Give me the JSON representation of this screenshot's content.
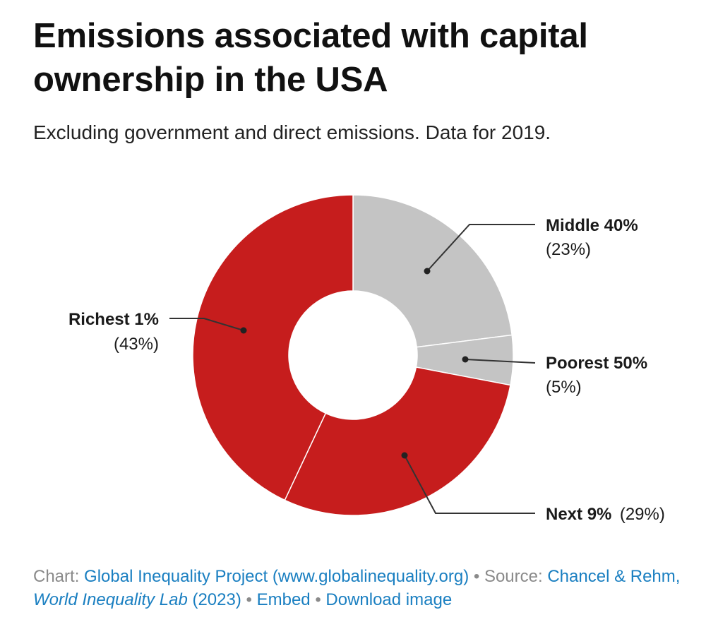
{
  "header": {
    "title": "Emissions associated with capital ownership in the USA",
    "subtitle": "Excluding government and direct emissions. Data for 2019."
  },
  "chart_data": {
    "type": "pie",
    "variant": "donut",
    "title": "Emissions associated with capital ownership in the USA",
    "subtitle": "Excluding government and direct emissions. Data for 2019.",
    "slices": [
      {
        "name": "Middle 40%",
        "value": 23,
        "label": "(23%)",
        "color": "#c4c4c4"
      },
      {
        "name": "Poorest 50%",
        "value": 5,
        "label": "(5%)",
        "color": "#c4c4c4"
      },
      {
        "name": "Next 9%",
        "value": 29,
        "label": "(29%)",
        "color": "#c61d1d"
      },
      {
        "name": "Richest 1%",
        "value": 43,
        "label": "(43%)",
        "color": "#c61d1d"
      }
    ],
    "start": "12 o'clock",
    "direction": "clockwise"
  },
  "footer": {
    "chart_prefix": "Chart:",
    "chart_link": "Global Inequality Project (www.globalinequality.org)",
    "bullet": "•",
    "source_prefix": "Source:",
    "source_link_a": "Chancel & Rehm,",
    "source_link_italic": "World Inequality Lab",
    "source_link_b": "(2023)",
    "embed": "Embed",
    "download": "Download image"
  }
}
